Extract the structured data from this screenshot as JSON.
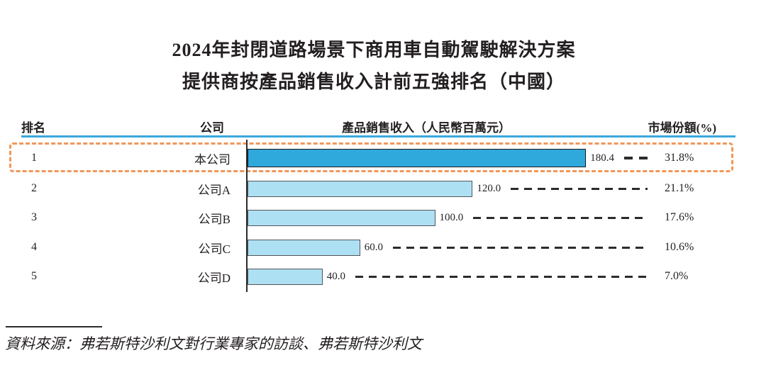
{
  "title": {
    "line1": "2024年封閉道路場景下商用車自動駕駛解決方案",
    "line2": "提供商按產品銷售收入計前五強排名（中國）"
  },
  "table": {
    "headers": {
      "rank": "排名",
      "company": "公司",
      "revenue": "產品銷售收入（人民幣百萬元）",
      "share": "市場份額(%)"
    }
  },
  "chart_data": {
    "type": "bar",
    "orientation": "horizontal",
    "title": "2024年封閉道路場景下商用車自動駕駛解決方案提供商按產品銷售收入計前五強排名（中國）",
    "xlabel": "產品銷售收入（人民幣百萬元）",
    "xlim": [
      0,
      200
    ],
    "grid": false,
    "ranks": [
      "1",
      "2",
      "3",
      "4",
      "5"
    ],
    "categories": [
      "本公司",
      "公司A",
      "公司B",
      "公司C",
      "公司D"
    ],
    "values": [
      180.4,
      120.0,
      100.0,
      60.0,
      40.0
    ],
    "value_labels": [
      "180.4",
      "120.0",
      "100.0",
      "60.0",
      "40.0"
    ],
    "shares": [
      "31.8%",
      "21.1%",
      "17.6%",
      "10.6%",
      "7.0%"
    ],
    "highlight_row": 0,
    "colors": {
      "highlight_bar": "#2fa8dc",
      "bar": "#aee0f4",
      "bar_border": "#55565a",
      "highlight_bar_border": "#18181a",
      "header_rule": "#3aa8dc",
      "highlight_box": "#f0975a",
      "connector": "#2b2b2b",
      "text": "#231f20"
    }
  },
  "source": {
    "text": "資料來源：弗若斯特沙利文對行業專家的訪談、弗若斯特沙利文"
  }
}
